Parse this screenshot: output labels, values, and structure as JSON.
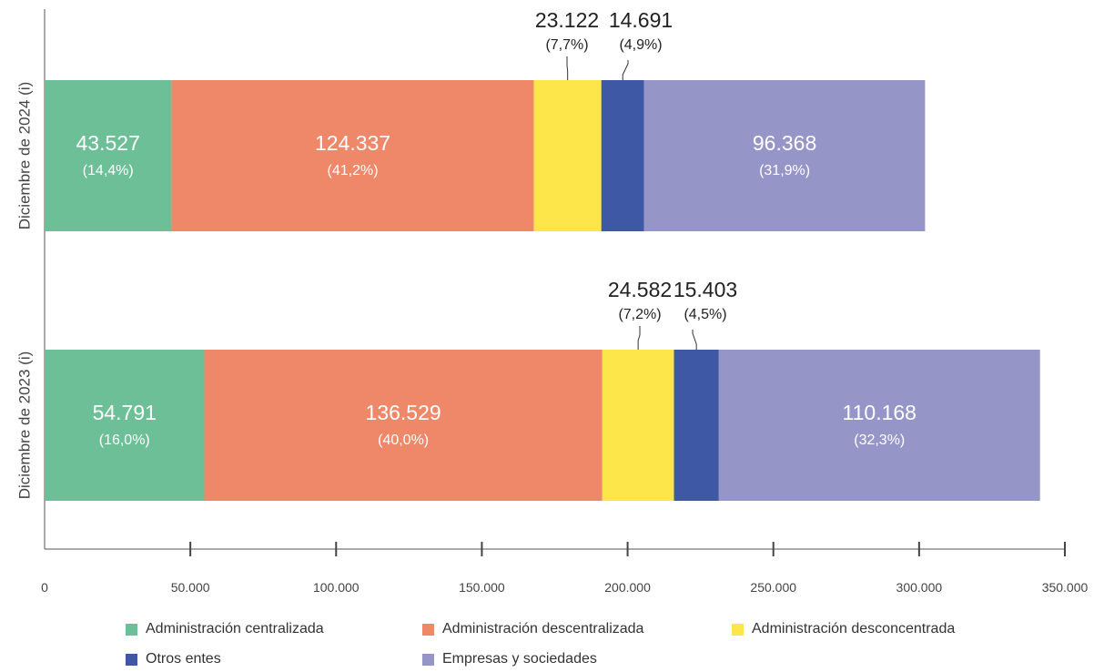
{
  "chart_data": {
    "type": "bar",
    "orientation": "horizontal",
    "stacked": true,
    "categories": [
      "Diciembre de 2024 (i)",
      "Diciembre de 2023 (i)"
    ],
    "series": [
      {
        "name": "Administración centralizada",
        "color": "#6dbf98",
        "values": [
          43527,
          54791
        ],
        "labels": [
          "43.527",
          "54.791"
        ],
        "shares": [
          "(14,4%)",
          "(16,0%)"
        ]
      },
      {
        "name": "Administración descentralizada",
        "color": "#ee8869",
        "values": [
          124337,
          136529
        ],
        "labels": [
          "124.337",
          "136.529"
        ],
        "shares": [
          "(41,2%)",
          "(40,0%)"
        ]
      },
      {
        "name": "Administración desconcentrada",
        "color": "#fce64a",
        "values": [
          23122,
          24582
        ],
        "labels": [
          "23.122",
          "24.582"
        ],
        "shares": [
          "(7,7%)",
          "(7,2%)"
        ]
      },
      {
        "name": "Otros entes",
        "color": "#3f58a6",
        "values": [
          14691,
          15403
        ],
        "labels": [
          "14.691",
          "15.403"
        ],
        "shares": [
          "(4,9%)",
          "(4,5%)"
        ]
      },
      {
        "name": "Empresas y sociedades",
        "color": "#9695c7",
        "values": [
          96368,
          110168
        ],
        "labels": [
          "96.368",
          "110.168"
        ],
        "shares": [
          "(31,9%)",
          "(32,3%)"
        ]
      }
    ],
    "xlim": [
      0,
      350000
    ],
    "xticks": [
      0,
      50000,
      100000,
      150000,
      200000,
      250000,
      300000,
      350000
    ],
    "xtick_labels": [
      "0",
      "50.000",
      "100.000",
      "150.000",
      "200.000",
      "250.000",
      "300.000",
      "350.000"
    ],
    "grid": false,
    "legend_position": "bottom"
  },
  "legend": {
    "items": [
      {
        "label": "Administración centralizada",
        "color": "#6dbf98"
      },
      {
        "label": "Administración descentralizada",
        "color": "#ee8869"
      },
      {
        "label": "Administración desconcentrada",
        "color": "#fce64a"
      },
      {
        "label": "Otros entes",
        "color": "#3f58a6"
      },
      {
        "label": "Empresas y sociedades",
        "color": "#9695c7"
      }
    ]
  }
}
